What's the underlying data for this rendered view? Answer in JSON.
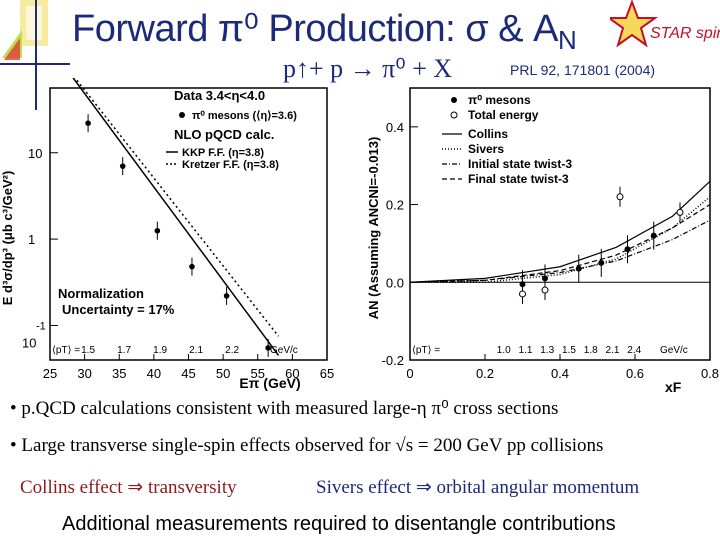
{
  "slide": {
    "title": {
      "main": "Forward π⁰ Production: σ & A",
      "sub": "N"
    },
    "reaction": "p↑+ p → π⁰ + X",
    "reference": "PRL 92, 171801 (2004)",
    "logo_text": "STAR spin",
    "bullets": [
      "• p.QCD calculations consistent with measured large-η π⁰ cross sections",
      "• Large transverse single-spin effects observed for √s = 200 GeV pp collisions"
    ],
    "collins_note": "Collins effect ⇒ transversity",
    "sivers_note": "Sivers effect ⇒ orbital angular momentum",
    "footer": "Additional measurements required to disentangle contributions"
  },
  "colors": {
    "title_blue": "#1c2a7a",
    "note_red": "#8b1a1a",
    "logo_red": "#c0102a",
    "logo_gold": "#e8b020"
  },
  "chart_data": [
    {
      "type": "scatter",
      "xlabel": "Eπ (GeV)",
      "ylabel": "E d³σ/dp³ (μb c³/GeV²)",
      "xlim": [
        25,
        65
      ],
      "ylog": true,
      "xticks": [
        "25",
        "30",
        "35",
        "40",
        "45",
        "50",
        "55",
        "60",
        "65"
      ],
      "yticks": [
        "10",
        "1",
        "-1"
      ],
      "ytick_decade_prefix": "10",
      "legend": {
        "data": "Data 3.4<η<4.0",
        "marker": "π⁰ mesons (⟨η⟩=3.6)",
        "nlo": "NLO pQCD calc.",
        "kkp": "KKP F.F. (η=3.8)",
        "kretzer": "Kretzer F.F. (η=3.8)"
      },
      "normalization": [
        "Normalization",
        "Uncertainty = 17%"
      ],
      "pt_row": {
        "label": "⟨pT⟩ =",
        "values": [
          "1.5",
          "1.7",
          "1.9",
          "2.1",
          "2.2"
        ],
        "unit": "GeV/c"
      },
      "series": [
        {
          "name": "π⁰ mesons",
          "x": [
            30.5,
            35.5,
            40.5,
            45.5,
            50.5,
            56.5
          ],
          "y": [
            22,
            7.0,
            1.25,
            0.48,
            0.22,
            0.055
          ]
        },
        {
          "name": "KKP F.F. (η=3.8)",
          "x": [
            28,
            58
          ],
          "y": [
            80,
            0.045
          ]
        },
        {
          "name": "Kretzer F.F. (η=3.8)",
          "x": [
            28,
            58
          ],
          "y": [
            85,
            0.075
          ]
        }
      ]
    },
    {
      "type": "scatter",
      "xlabel": "xF",
      "ylabel": "AN (Assuming ANCNI=-0.013)",
      "xlim": [
        0,
        0.8
      ],
      "ylim": [
        -0.2,
        0.5
      ],
      "xticks": [
        "0",
        "0.2",
        "0.4",
        "0.6",
        "0.8"
      ],
      "yticks": [
        "0.4",
        "0.2",
        "0.0",
        "-0.2"
      ],
      "legend": [
        "π⁰ mesons",
        "Total energy",
        "Collins",
        "Sivers",
        "Initial state twist-3",
        "Final state twist-3"
      ],
      "pt_row": {
        "label": "⟨pT⟩ =",
        "values": [
          "1.0",
          "1.1",
          "1.3",
          "1.5",
          "1.8",
          "2.1",
          "2.4"
        ],
        "unit": "GeV/c"
      },
      "series": [
        {
          "name": "π⁰ mesons",
          "x": [
            0.3,
            0.36,
            0.45,
            0.51,
            0.58,
            0.65
          ],
          "y": [
            -0.005,
            0.01,
            0.035,
            0.05,
            0.085,
            0.12
          ]
        },
        {
          "name": "Total energy",
          "x": [
            0.3,
            0.36,
            0.56,
            0.72
          ],
          "y": [
            -0.03,
            -0.02,
            0.22,
            0.18
          ]
        },
        {
          "name": "Collins",
          "x": [
            0.0,
            0.2,
            0.4,
            0.55,
            0.7,
            0.8
          ],
          "y": [
            0.0,
            0.01,
            0.04,
            0.09,
            0.17,
            0.26
          ]
        },
        {
          "name": "Sivers",
          "x": [
            0.0,
            0.2,
            0.4,
            0.55,
            0.7,
            0.8
          ],
          "y": [
            0.0,
            0.0,
            0.02,
            0.06,
            0.14,
            0.22
          ]
        },
        {
          "name": "Initial state twist-3",
          "x": [
            0.0,
            0.2,
            0.4,
            0.55,
            0.7,
            0.8
          ],
          "y": [
            0.0,
            0.005,
            0.025,
            0.055,
            0.11,
            0.16
          ]
        },
        {
          "name": "Final state twist-3",
          "x": [
            0.0,
            0.2,
            0.4,
            0.55,
            0.7,
            0.8
          ],
          "y": [
            0.0,
            0.005,
            0.03,
            0.07,
            0.14,
            0.2
          ]
        }
      ]
    }
  ]
}
